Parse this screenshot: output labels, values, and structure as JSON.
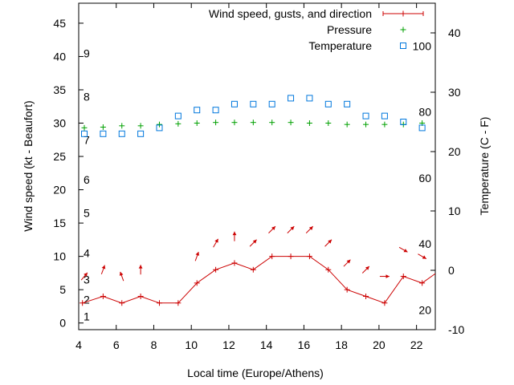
{
  "chart_data": {
    "type": "line",
    "xlabel": "Local time (Europe/Athens)",
    "ylabel_left": "Wind speed (kt - Beaufort)",
    "ylabel_right": "Temperature (C - F)",
    "xlim": [
      4,
      23
    ],
    "x_ticks": [
      4,
      6,
      8,
      10,
      12,
      14,
      16,
      18,
      20,
      22
    ],
    "ylim_left": [
      -1,
      48
    ],
    "y_ticks_left": [
      0,
      5,
      10,
      15,
      20,
      25,
      30,
      35,
      40,
      45
    ],
    "ylim_right": [
      -10,
      45
    ],
    "y_ticks_right": [
      -10,
      0,
      10,
      20,
      30,
      40
    ],
    "beaufort_labels": [
      {
        "label": "1",
        "kt": 1
      },
      {
        "label": "2",
        "kt": 3.5
      },
      {
        "label": "3",
        "kt": 6.5
      },
      {
        "label": "4",
        "kt": 10.5
      },
      {
        "label": "5",
        "kt": 16.5
      },
      {
        "label": "6",
        "kt": 21.5
      },
      {
        "label": "7",
        "kt": 27.5
      },
      {
        "label": "8",
        "kt": 34
      },
      {
        "label": "9",
        "kt": 40.5
      }
    ],
    "fahrenheit_labels": [
      {
        "label": "20",
        "c": -6.67
      },
      {
        "label": "40",
        "c": 4.44
      },
      {
        "label": "60",
        "c": 15.56
      },
      {
        "label": "80",
        "c": 26.67
      },
      {
        "label": "100",
        "c": 37.78
      }
    ],
    "series": [
      {
        "name": "Wind speed, gusts, and direction",
        "color": "#cc0000",
        "axis": "left",
        "marker": "plus-line",
        "x": [
          4.2,
          5.3,
          6.3,
          7.3,
          8.3,
          9.3,
          10.3,
          11.3,
          12.3,
          13.3,
          14.3,
          15.3,
          16.3,
          17.3,
          18.3,
          19.3,
          20.3,
          21.3,
          22.3,
          23.3
        ],
        "values": [
          3,
          4,
          3,
          4,
          3,
          3,
          6,
          8,
          9,
          8,
          10,
          10,
          10,
          8,
          5,
          4,
          3,
          7,
          6,
          8
        ]
      },
      {
        "name": "Pressure",
        "color": "#00a000",
        "axis": "left",
        "marker": "plus",
        "x": [
          4.3,
          5.3,
          6.3,
          7.3,
          8.3,
          9.3,
          10.3,
          11.3,
          12.3,
          13.3,
          14.3,
          15.3,
          16.3,
          17.3,
          18.3,
          19.3,
          20.3,
          21.3,
          22.3
        ],
        "values": [
          29.3,
          29.4,
          29.6,
          29.6,
          29.8,
          29.9,
          30.0,
          30.1,
          30.1,
          30.1,
          30.1,
          30.1,
          30.0,
          30.0,
          29.8,
          29.8,
          29.8,
          29.8,
          30.0
        ]
      },
      {
        "name": "Temperature",
        "color": "#0077dd",
        "axis": "right",
        "marker": "square",
        "x": [
          4.3,
          5.3,
          6.3,
          7.3,
          8.3,
          9.3,
          10.3,
          11.3,
          12.3,
          13.3,
          14.3,
          15.3,
          16.3,
          17.3,
          18.3,
          19.3,
          20.3,
          21.3,
          22.3
        ],
        "values": [
          23,
          23,
          23,
          23,
          24,
          26,
          27,
          27,
          28,
          28,
          28,
          29,
          29,
          28,
          28,
          26,
          26,
          25,
          24
        ]
      }
    ],
    "wind_direction_arrows": {
      "color": "#cc0000",
      "x": [
        4.3,
        5.3,
        6.3,
        7.3,
        10.3,
        11.3,
        12.3,
        13.3,
        14.3,
        15.3,
        16.3,
        17.3,
        18.3,
        19.3,
        20.3,
        21.3,
        22.3
      ],
      "kt": [
        7.0,
        8.0,
        7.0,
        8.0,
        10.0,
        12.0,
        13.0,
        12.0,
        14.0,
        14.0,
        14.0,
        12.0,
        9.0,
        8.0,
        7.0,
        11.0,
        10.0
      ],
      "angle_deg": [
        220,
        200,
        160,
        180,
        200,
        210,
        180,
        225,
        225,
        225,
        225,
        225,
        225,
        225,
        270,
        300,
        300
      ]
    },
    "legend_position": "top-right",
    "grid": false
  }
}
